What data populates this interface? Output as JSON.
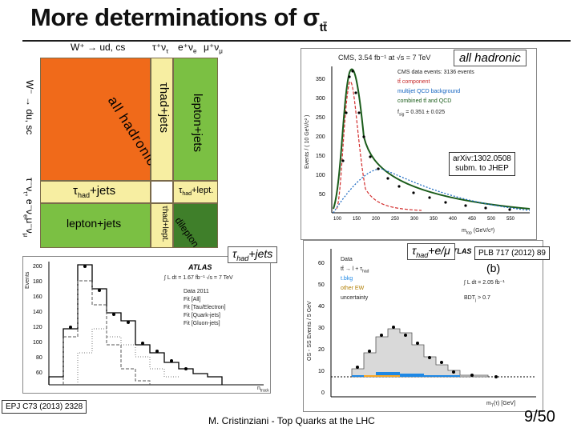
{
  "slide": {
    "title": "More determinations of σ",
    "title_sub": "tt̄",
    "page": "9/50",
    "footer": "M. Cristinziani - Top Quarks at the LHC",
    "accent": "#f06a1a"
  },
  "decay_grid": {
    "top_labels": [
      "W⁺ → ud, cs",
      "τ⁺ν",
      "τ",
      "e⁺ν",
      "e",
      "μ⁺ν",
      "μ"
    ],
    "left_labels": [
      "W⁻ → du, sc",
      "τ⁻ν",
      "τ",
      ", e⁻ν",
      "e",
      "μ⁻ν",
      "μ"
    ],
    "cells": {
      "all_hadronic": "all hadronic",
      "tau_had_jets_vertical": "τhad+jets",
      "tau_sub": "had",
      "lepton_jets_vertical": "lepton+jets",
      "tau_had_jets": "τ",
      "tau_had_jets_sub": "had",
      "tau_had_jets_rest": "+jets",
      "tau_had_lept": "τ",
      "tau_had_lept_sub": "had",
      "tau_had_lept_rest": "+lept.",
      "lepton_jets": "lepton+jets",
      "tau_had_lept_vertical": "τhad+lept.",
      "dilepton": "dilepton"
    },
    "colors": {
      "orange": "#f06a1a",
      "yellow": "#f7eea2",
      "green": "#7bc043",
      "darkgreen": "#3f7f2a"
    }
  },
  "annotations": {
    "all_hadronic_tag": "all hadronic",
    "tau_jets_tag": "τ",
    "tau_jets_tag_sub": "had",
    "tau_jets_tag_rest": "+jets",
    "tau_emu_tag": "τ",
    "tau_emu_tag_sub": "had",
    "tau_emu_tag_rest": "+e/μ",
    "ref_cms": "arXiv:1302.0508\nsubm. to JHEP",
    "ref_plb": "PLB 717 (2012) 89",
    "ref_epj": "EPJ C73 (2013) 2328"
  },
  "plots": {
    "cms": {
      "header": "CMS, 3.54 fb⁻¹ at √s = 7 TeV",
      "legend": [
        "CMS data events: 3136 events",
        "tt̄ component",
        "multijet QCD background",
        "combined tt̄ and QCD",
        "f",
        "sig",
        " = 0.351 ± 0.025"
      ],
      "ylabel": "Events / ( 10 GeV/c² )",
      "xlabel": "m",
      "xlabel_sub": "top",
      "xlabel_rest": " (GeV/c²)",
      "yticks": [
        "350",
        "300",
        "250",
        "200",
        "150",
        "100",
        "50"
      ],
      "xticks": [
        "100",
        "150",
        "200",
        "250",
        "300",
        "350",
        "400",
        "450",
        "500",
        "550"
      ]
    },
    "atlas_jets": {
      "brand": "ATLAS",
      "lumi": "∫ L dt = 1.67 fb⁻¹ √s = 7 TeV",
      "legend": [
        "Data 2011",
        "Fit [All]",
        "Fit [Tau/Electron]",
        "Fit [Quark-jets]",
        "Fit [Gluon-jets]"
      ],
      "ylabel": "Events",
      "xlabel": "n",
      "xlabel_sub": "track",
      "yticks": [
        "200",
        "180",
        "160",
        "140",
        "120",
        "100",
        "80",
        "60"
      ]
    },
    "atlas_emu": {
      "brand": "ATLAS",
      "label": "(b)",
      "lumi": "∫ L dt = 2.05 fb⁻¹",
      "cut": "BDT",
      "cut_sub": "j",
      "cut_rest": " > 0.7",
      "legend": [
        "Data",
        "tt̄ → l + τ",
        "had",
        "t.bkg",
        "other EW",
        "uncertainty"
      ],
      "ylabel": "OS - SS Events / 5 GeV",
      "xlabel": "m",
      "xlabel_sub": "T",
      "xlabel_rest": "(τ) [GeV]",
      "yticks": [
        "60",
        "50",
        "40",
        "30",
        "20",
        "10",
        "0"
      ]
    }
  }
}
